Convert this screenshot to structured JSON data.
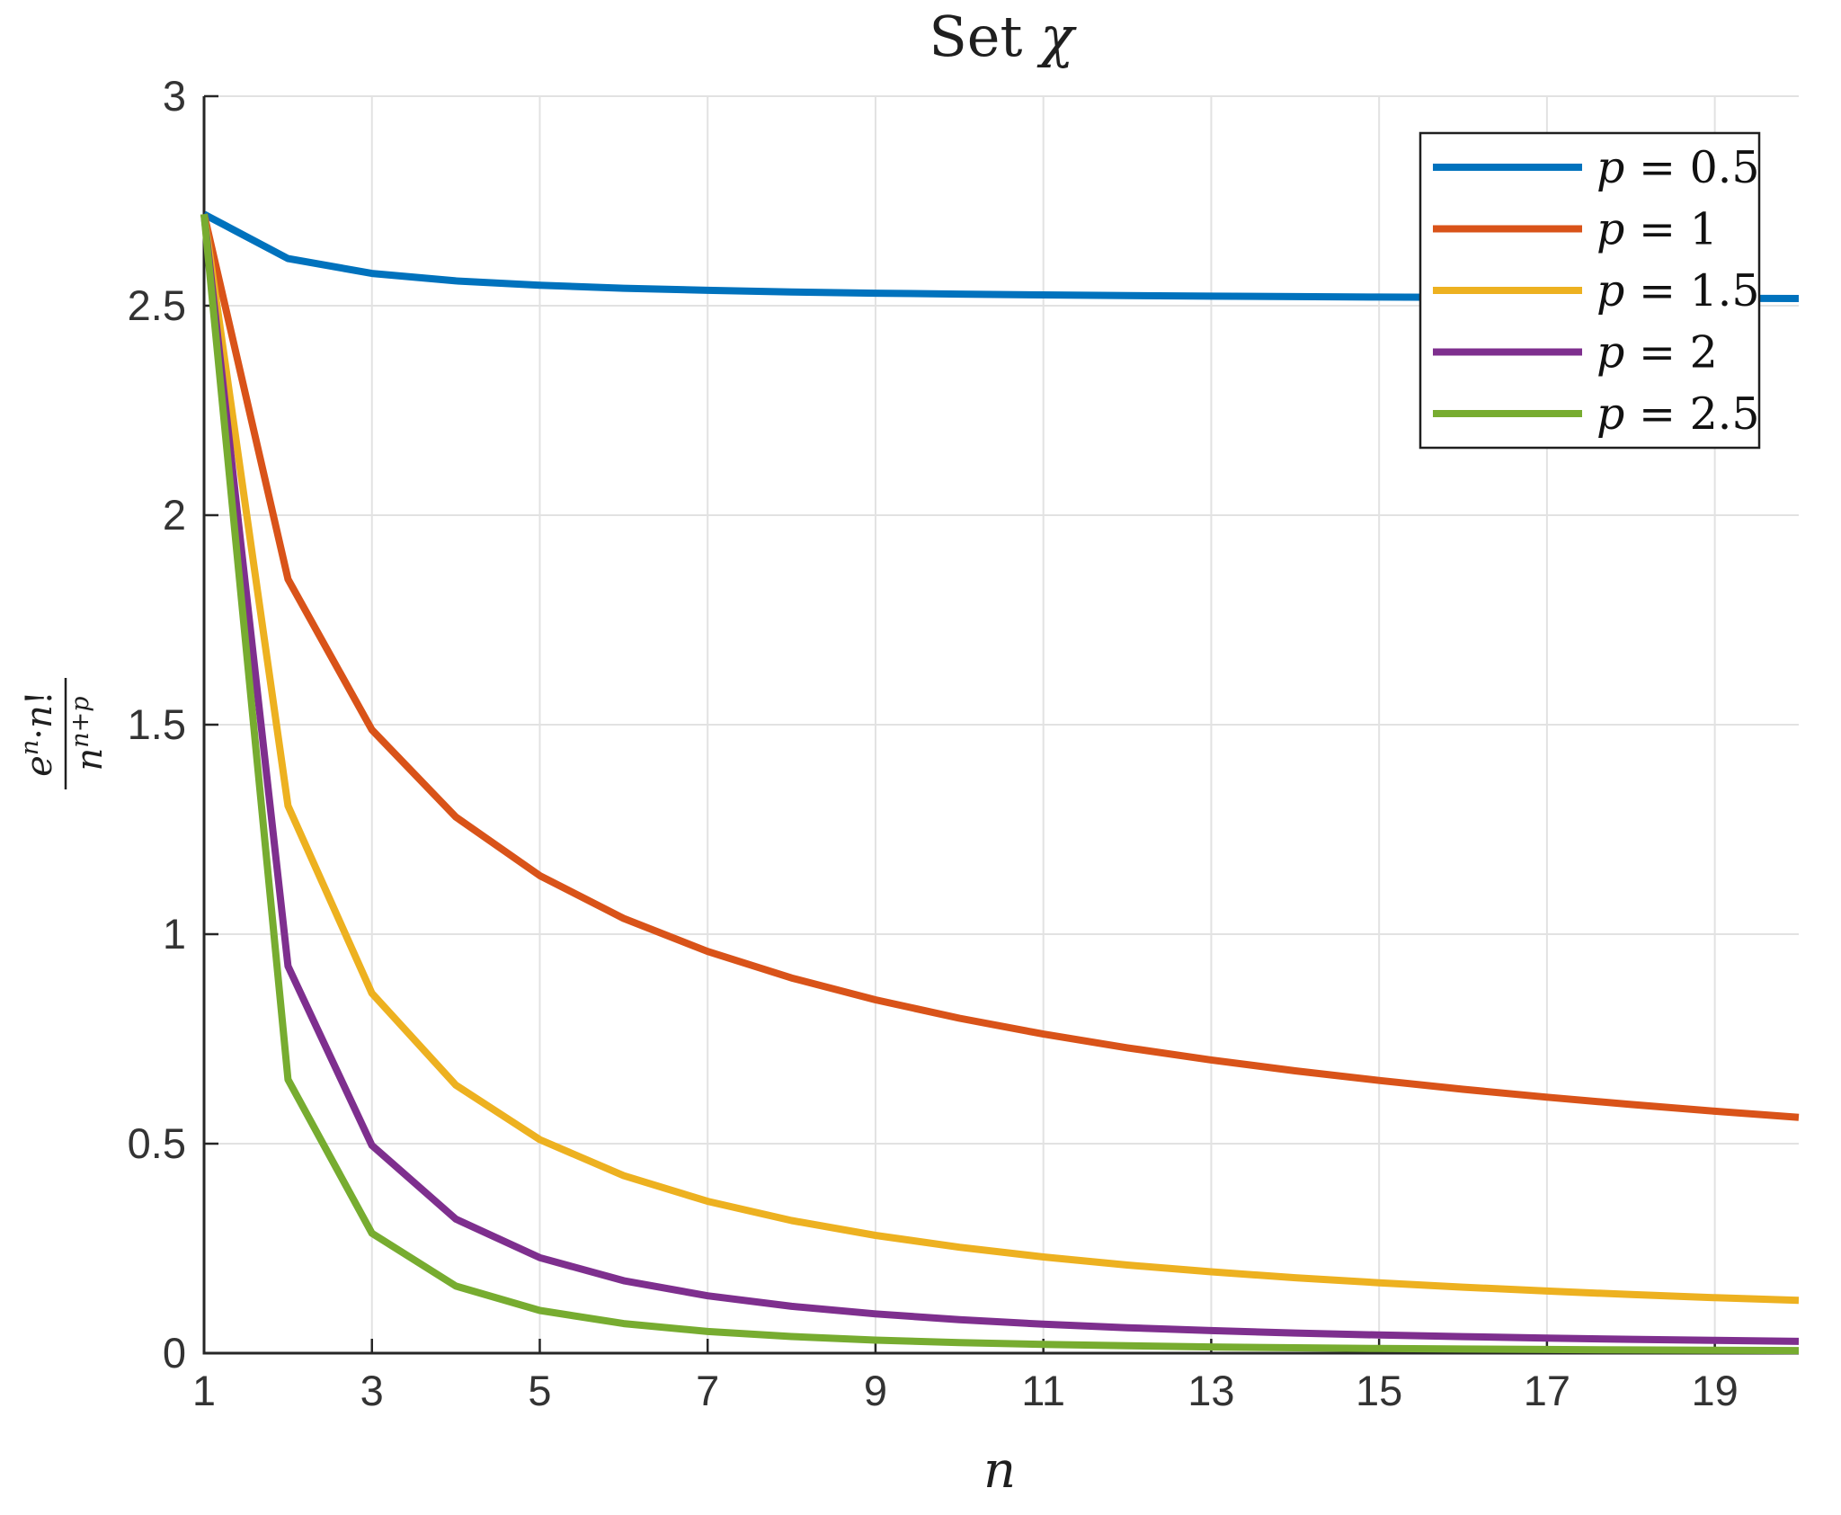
{
  "figure": {
    "background": "#ffffff"
  },
  "chart_data": {
    "type": "line",
    "title": "Set χ",
    "xlabel": "n",
    "ylabel": "e^n·n!/n^(n+p)",
    "ylabel_fraction": {
      "numerator": [
        {
          "text": "e",
          "italic": true
        },
        {
          "text": "n",
          "italic": true,
          "sup": true
        },
        {
          "text": "·"
        },
        {
          "text": "n",
          "italic": true
        },
        {
          "text": "!"
        }
      ],
      "denominator": [
        {
          "text": "n",
          "italic": true
        },
        {
          "text": "n+p",
          "italic": true,
          "sup": true
        }
      ]
    },
    "xlim": [
      1,
      20
    ],
    "ylim": [
      0,
      3
    ],
    "xticks": [
      1,
      3,
      5,
      7,
      9,
      11,
      13,
      15,
      17,
      19
    ],
    "yticks": [
      0,
      0.5,
      1,
      1.5,
      2,
      2.5,
      3
    ],
    "xtick_labels": [
      "1",
      "3",
      "5",
      "7",
      "9",
      "11",
      "13",
      "15",
      "17",
      "19"
    ],
    "ytick_labels": [
      "0",
      "0.5",
      "1",
      "1.5",
      "2",
      "2.5",
      "3"
    ],
    "grid": true,
    "legend_position": "top-right",
    "x": [
      1,
      2,
      3,
      4,
      5,
      6,
      7,
      8,
      9,
      10,
      11,
      12,
      13,
      14,
      15,
      16,
      17,
      18,
      19,
      20
    ],
    "series": [
      {
        "name": "p = 0.5",
        "color": "#0072BD",
        "values": [
          2.7183,
          2.6124,
          2.577,
          2.5593,
          2.5487,
          2.5417,
          2.5366,
          2.5327,
          2.5299,
          2.5276,
          2.5257,
          2.5241,
          2.5228,
          2.5216,
          2.5206,
          2.5197,
          2.5189,
          2.5183,
          2.5177,
          2.5171
        ]
      },
      {
        "name": "p = 1",
        "color": "#D95319",
        "values": [
          2.7183,
          1.8473,
          1.4878,
          1.2797,
          1.1398,
          1.0376,
          0.9588,
          0.8955,
          0.8433,
          0.7993,
          0.7615,
          0.7287,
          0.6997,
          0.6739,
          0.6508,
          0.6299,
          0.6109,
          0.5936,
          0.5775,
          0.5628
        ]
      },
      {
        "name": "p = 1.5",
        "color": "#EDB120",
        "values": [
          2.7183,
          1.3062,
          0.859,
          0.6398,
          0.5097,
          0.4236,
          0.3624,
          0.3166,
          0.2811,
          0.2528,
          0.2296,
          0.2103,
          0.1941,
          0.1801,
          0.168,
          0.1575,
          0.1482,
          0.1399,
          0.1325,
          0.1259
        ]
      },
      {
        "name": "p = 2",
        "color": "#7E2F8E",
        "values": [
          2.7183,
          0.9236,
          0.4959,
          0.3199,
          0.228,
          0.1729,
          0.137,
          0.1119,
          0.0937,
          0.0799,
          0.0692,
          0.0607,
          0.0538,
          0.0481,
          0.0434,
          0.0394,
          0.0359,
          0.033,
          0.0304,
          0.0281
        ]
      },
      {
        "name": "p = 2.5",
        "color": "#77AC30",
        "values": [
          2.7183,
          0.6531,
          0.2863,
          0.16,
          0.1019,
          0.0706,
          0.0518,
          0.0396,
          0.0311,
          0.0253,
          0.0209,
          0.0175,
          0.0149,
          0.0129,
          0.0112,
          0.0098,
          0.0087,
          0.0078,
          0.007,
          0.0063
        ]
      }
    ],
    "style": {
      "axis_color": "#262626",
      "grid_color": "#e2e2e2",
      "tick_label_color": "#333333",
      "text_color": "#1f1f1f",
      "legend_border_color": "#1f1f1f",
      "background": "#ffffff",
      "line_width": 8
    }
  }
}
